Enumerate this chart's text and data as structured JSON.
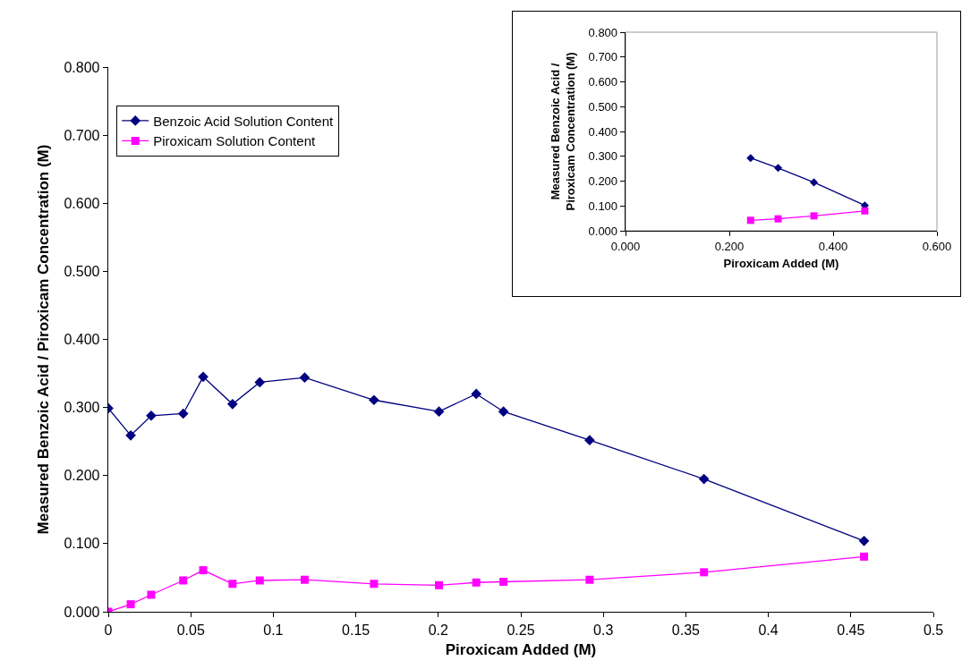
{
  "chart_data": [
    {
      "type": "line",
      "xlabel": "Piroxicam Added (M)",
      "ylabel": "Measured Benzoic Acid / Piroxicam Concentration (M)",
      "xlim": [
        0,
        0.5
      ],
      "xticks": [
        0,
        0.05,
        0.1,
        0.15,
        0.2,
        0.25,
        0.3,
        0.35,
        0.4,
        0.45,
        0.5
      ],
      "ylim": [
        0,
        0.8
      ],
      "yticks": [
        {
          "value": 0,
          "label": "0.000"
        },
        {
          "value": 0.1,
          "label": "0.100"
        },
        {
          "value": 0.2,
          "label": "0.200"
        },
        {
          "value": 0.3,
          "label": "0.300"
        },
        {
          "value": 0.4,
          "label": "0.400"
        },
        {
          "value": 0.5,
          "label": "0.500"
        },
        {
          "value": 0.6,
          "label": "0.600"
        },
        {
          "value": 0.7,
          "label": "0.700"
        },
        {
          "value": 0.8,
          "label": "0.800"
        }
      ],
      "grid": false,
      "legend": "top left",
      "x": [
        0,
        0.0136,
        0.026,
        0.0454,
        0.0575,
        0.0753,
        0.0918,
        0.119,
        0.161,
        0.2004,
        0.223,
        0.2395,
        0.2917,
        0.361,
        0.458
      ],
      "series": [
        {
          "name": "Benzoic Acid Solution Content",
          "color": "#000080",
          "marker": "diamond",
          "values": [
            0.299,
            0.259,
            0.288,
            0.291,
            0.345,
            0.305,
            0.337,
            0.344,
            0.311,
            0.294,
            0.32,
            0.294,
            0.252,
            0.195,
            0.104
          ]
        },
        {
          "name": "Piroxicam Solution Content",
          "color": "#ff00ff",
          "marker": "square",
          "values": [
            0,
            0.011,
            0.025,
            0.046,
            0.061,
            0.041,
            0.046,
            0.047,
            0.041,
            0.039,
            0.043,
            0.044,
            0.047,
            0.058,
            0.081
          ]
        }
      ]
    },
    {
      "type": "line",
      "xlabel": "Piroxicam Added (M)",
      "ylabel": "Measured Benzoic Acid / Piroxicam Concentration (M)",
      "xlim": [
        0,
        0.6
      ],
      "xticks": [
        {
          "value": 0,
          "label": "0.000"
        },
        {
          "value": 0.2,
          "label": "0.200"
        },
        {
          "value": 0.4,
          "label": "0.400"
        },
        {
          "value": 0.6,
          "label": "0.600"
        }
      ],
      "ylim": [
        0,
        0.8
      ],
      "yticks": [
        {
          "value": 0,
          "label": "0.000"
        },
        {
          "value": 0.1,
          "label": "0.100"
        },
        {
          "value": 0.2,
          "label": "0.200"
        },
        {
          "value": 0.3,
          "label": "0.300"
        },
        {
          "value": 0.4,
          "label": "0.400"
        },
        {
          "value": 0.5,
          "label": "0.500"
        },
        {
          "value": 0.6,
          "label": "0.600"
        },
        {
          "value": 0.7,
          "label": "0.700"
        },
        {
          "value": 0.8,
          "label": "0.800"
        }
      ],
      "grid": false,
      "legend": false,
      "x": [
        0.241,
        0.294,
        0.363,
        0.461
      ],
      "series": [
        {
          "color": "#000080",
          "marker": "diamond",
          "values": [
            0.293,
            0.253,
            0.195,
            0.102
          ]
        },
        {
          "color": "#ff00ff",
          "marker": "square",
          "values": [
            0.042,
            0.048,
            0.06,
            0.08
          ]
        }
      ]
    }
  ]
}
